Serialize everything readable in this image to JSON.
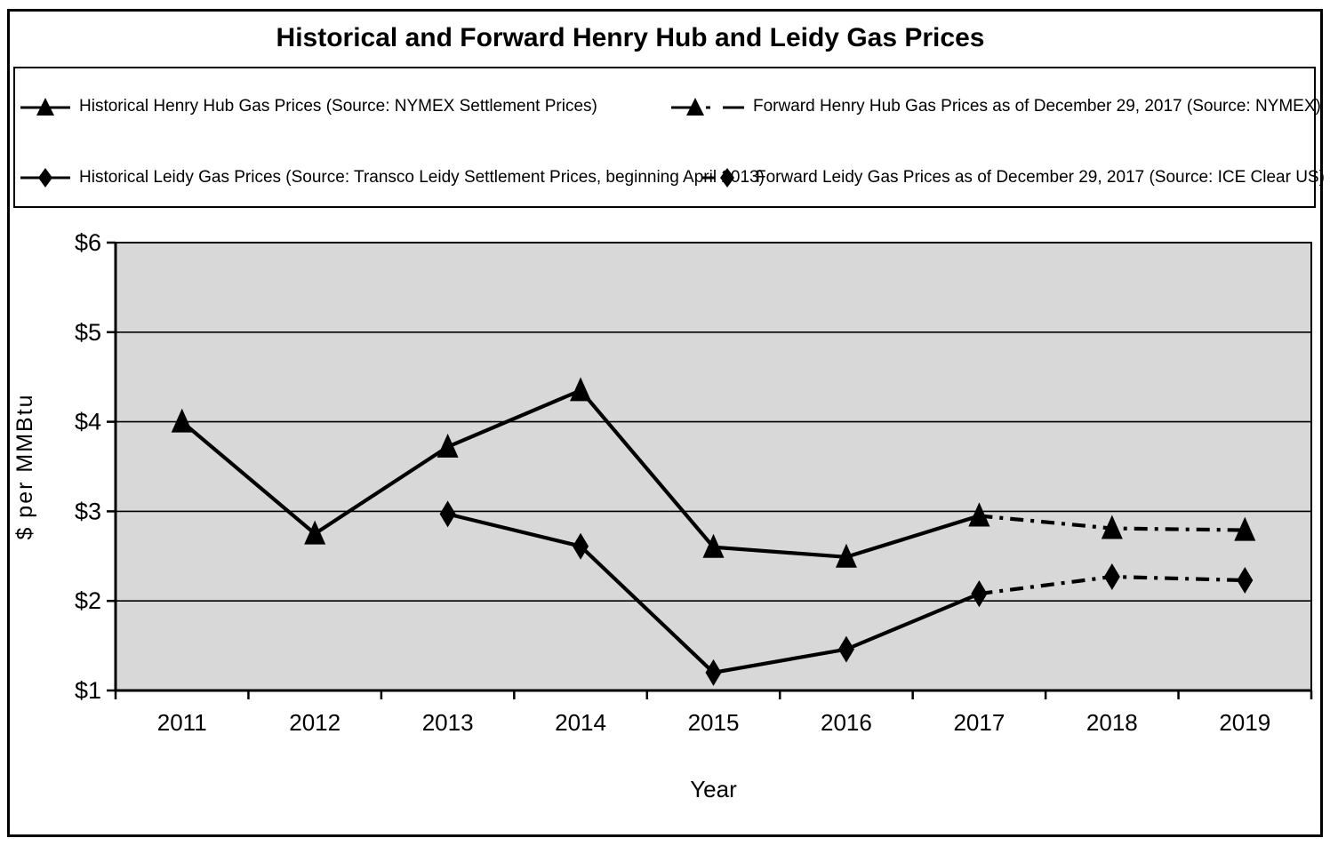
{
  "title": "Historical and Forward Henry Hub and Leidy Gas Prices",
  "legend": {
    "icons": [
      "solid-line-triangle-marker-icon",
      "dash-dot-line-triangle-marker-icon",
      "solid-line-diamond-marker-icon",
      "dash-dot-line-diamond-marker-icon"
    ]
  },
  "chart_data": {
    "type": "line",
    "title": "Historical and Forward Henry Hub and Leidy Gas Prices",
    "xlabel": "Year",
    "ylabel": "$ per MMBtu",
    "categories": [
      "2011",
      "2012",
      "2013",
      "2014",
      "2015",
      "2016",
      "2017",
      "2018",
      "2019"
    ],
    "ylim": [
      1,
      6
    ],
    "yticks": [
      1,
      2,
      3,
      4,
      5,
      6
    ],
    "ytick_labels": [
      "$1",
      "$2",
      "$3",
      "$4",
      "$5",
      "$6"
    ],
    "grid": true,
    "legend_position": "top",
    "plot_bg_color": "#d8d8d8",
    "line_color": "#000000",
    "series": [
      {
        "name": "Historical Henry Hub Gas Prices (Source: NYMEX Settlement Prices)",
        "line": "solid",
        "marker": "triangle",
        "x": [
          "2011",
          "2012",
          "2013",
          "2014",
          "2015",
          "2016",
          "2017"
        ],
        "values": [
          4.0,
          2.75,
          3.72,
          4.35,
          2.6,
          2.49,
          2.95
        ]
      },
      {
        "name": "Forward Henry Hub Gas Prices as of December 29, 2017 (Source: NYMEX)",
        "line": "dash-dot",
        "marker": "triangle",
        "x": [
          "2017",
          "2018",
          "2019"
        ],
        "values": [
          2.95,
          2.81,
          2.79
        ]
      },
      {
        "name": "Historical Leidy Gas Prices (Source: Transco Leidy Settlement Prices, beginning April 2013)",
        "line": "solid",
        "marker": "diamond",
        "x": [
          "2013",
          "2014",
          "2015",
          "2016",
          "2017"
        ],
        "values": [
          2.97,
          2.61,
          1.2,
          1.46,
          2.08
        ]
      },
      {
        "name": "Forward Leidy Gas Prices as of December 29, 2017 (Source: ICE Clear US)",
        "line": "dash-dot",
        "marker": "diamond",
        "x": [
          "2017",
          "2018",
          "2019"
        ],
        "values": [
          2.08,
          2.27,
          2.23
        ]
      }
    ]
  }
}
